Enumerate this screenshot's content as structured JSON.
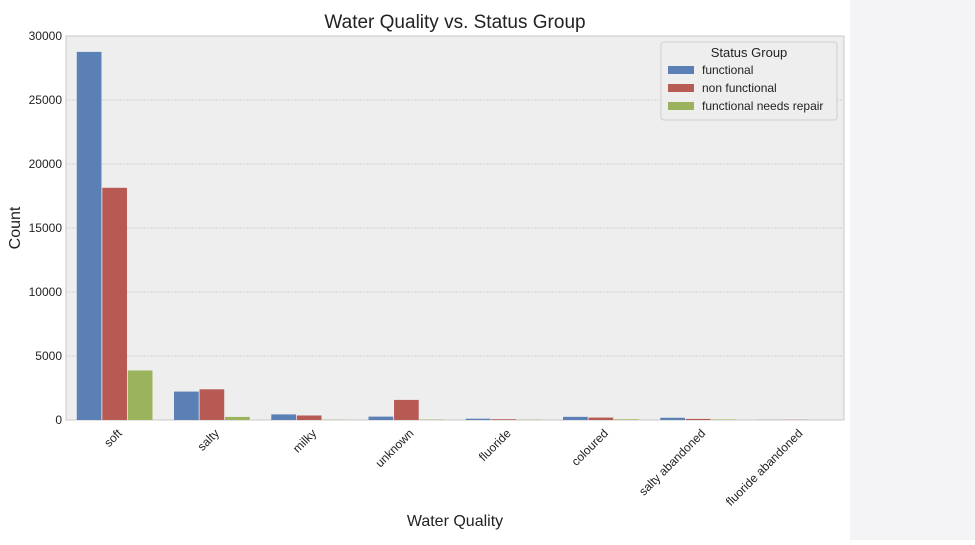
{
  "chart_data": {
    "type": "bar",
    "title": "Water Quality vs. Status Group",
    "xlabel": "Water Quality",
    "ylabel": "Count",
    "ylim": [
      0,
      30000
    ],
    "yticks": [
      0,
      5000,
      10000,
      15000,
      20000,
      25000,
      30000
    ],
    "grid": true,
    "legend_title": "Status Group",
    "legend_position": "top-right",
    "categories": [
      "soft",
      "salty",
      "milky",
      "unknown",
      "fluoride",
      "coloured",
      "salty abandoned",
      "fluoride abandoned"
    ],
    "series": [
      {
        "name": "functional",
        "color": "#5a80b6",
        "values": [
          28760,
          2220,
          438,
          264,
          101,
          246,
          174,
          12
        ]
      },
      {
        "name": "non functional",
        "color": "#b65a53",
        "values": [
          18140,
          2397,
          353,
          1570,
          60,
          190,
          84,
          15
        ]
      },
      {
        "name": "functional needs repair",
        "color": "#9bb35c",
        "values": [
          3870,
          240,
          13,
          30,
          24,
          54,
          44,
          0
        ]
      }
    ]
  }
}
